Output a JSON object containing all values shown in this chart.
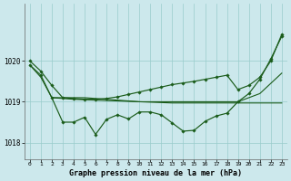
{
  "title": "Graphe pression niveau de la mer (hPa)",
  "bg_color": "#cce8ec",
  "grid_color": "#99cccc",
  "line_color": "#1a5c1a",
  "xlim": [
    -0.5,
    23.5
  ],
  "ylim": [
    1017.6,
    1021.4
  ],
  "yticks": [
    1018,
    1019,
    1020
  ],
  "xticks": [
    0,
    1,
    2,
    3,
    4,
    5,
    6,
    7,
    8,
    9,
    10,
    11,
    12,
    13,
    14,
    15,
    16,
    17,
    18,
    19,
    20,
    21,
    22,
    23
  ],
  "lineA_x": [
    0,
    1,
    2,
    3,
    4,
    5,
    6,
    7,
    8,
    9,
    10,
    11,
    12,
    13,
    14,
    15,
    16,
    17,
    18,
    19,
    20,
    21,
    22,
    23
  ],
  "lineA_y": [
    1019.9,
    1019.6,
    1019.1,
    1019.08,
    1019.06,
    1019.05,
    1019.04,
    1019.03,
    1019.02,
    1019.01,
    1019.0,
    1019.0,
    1019.0,
    1019.0,
    1019.0,
    1019.0,
    1019.0,
    1019.0,
    1019.0,
    1019.0,
    1019.1,
    1019.2,
    1019.45,
    1019.7
  ],
  "lineB_x": [
    2,
    3,
    4,
    5,
    6,
    7,
    8,
    9,
    10,
    11,
    12,
    13,
    14,
    15,
    16,
    17,
    18,
    19,
    20,
    21,
    22,
    23
  ],
  "lineB_y": [
    1019.1,
    1019.1,
    1019.1,
    1019.1,
    1019.08,
    1019.06,
    1019.04,
    1019.02,
    1019.0,
    1018.99,
    1018.98,
    1018.97,
    1018.97,
    1018.97,
    1018.97,
    1018.97,
    1018.97,
    1018.97,
    1018.97,
    1018.97,
    1018.97,
    1018.97
  ],
  "lineC_x": [
    0,
    1,
    2,
    3,
    4,
    5,
    6,
    7,
    8,
    9,
    10,
    11,
    12,
    13,
    14,
    15,
    16,
    17,
    18,
    19,
    20,
    21,
    22,
    23
  ],
  "lineC_y": [
    1019.9,
    1019.65,
    1019.1,
    1018.5,
    1018.5,
    1018.62,
    1018.2,
    1018.57,
    1018.68,
    1018.58,
    1018.75,
    1018.75,
    1018.68,
    1018.48,
    1018.28,
    1018.3,
    1018.52,
    1018.65,
    1018.72,
    1019.0,
    1019.2,
    1019.55,
    1020.05,
    1020.6
  ],
  "lineD_x": [
    0,
    1,
    2,
    3,
    4,
    5,
    6,
    7,
    8,
    9,
    10,
    11,
    12,
    13,
    14,
    15,
    16,
    17,
    18,
    19,
    20,
    21,
    22,
    23
  ],
  "lineD_y": [
    1020.0,
    1019.75,
    1019.4,
    1019.1,
    1019.08,
    1019.06,
    1019.06,
    1019.08,
    1019.12,
    1019.18,
    1019.24,
    1019.3,
    1019.36,
    1019.42,
    1019.46,
    1019.5,
    1019.55,
    1019.6,
    1019.65,
    1019.3,
    1019.4,
    1019.6,
    1020.0,
    1020.65
  ]
}
